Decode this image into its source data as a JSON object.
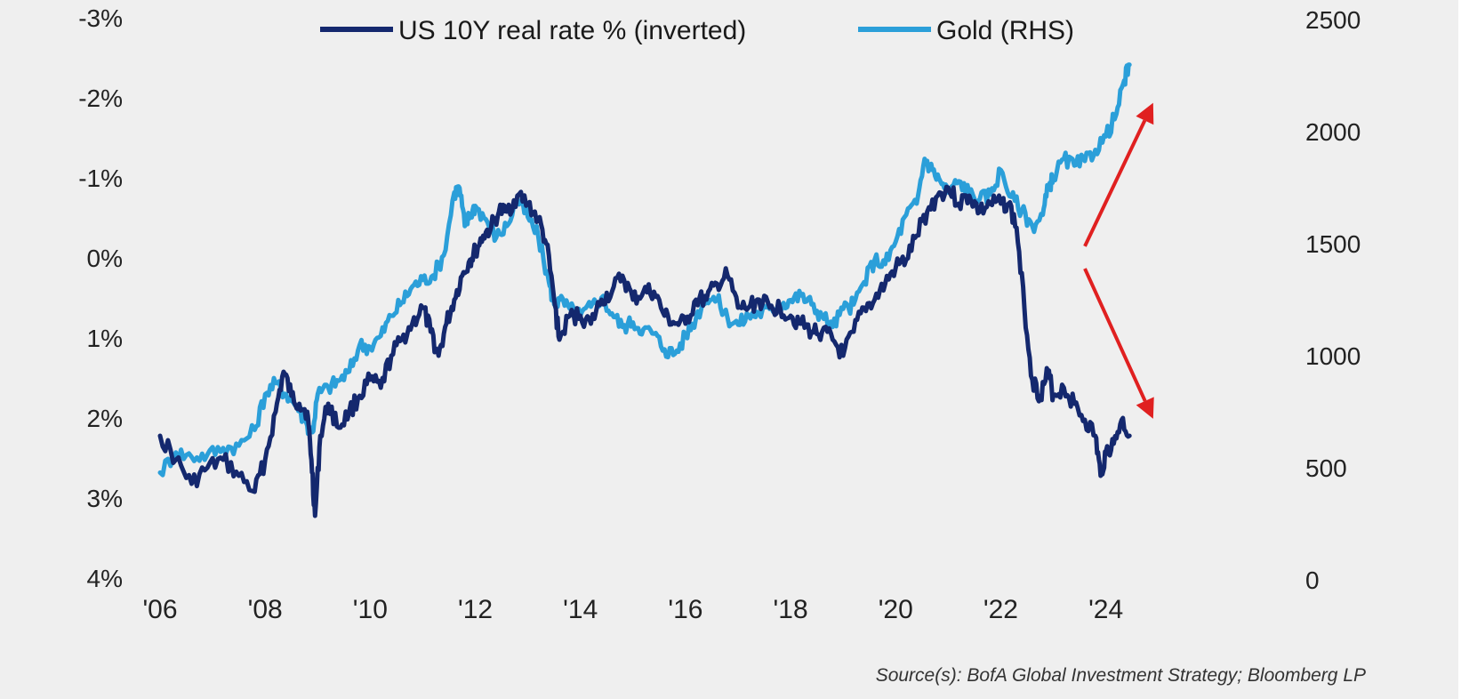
{
  "chart_data": {
    "type": "line",
    "title": "",
    "legend_position": "top-center",
    "grid": false,
    "source": "Source(s): BofA Global Investment Strategy; Bloomberg LP",
    "x_ticks": [
      "'06",
      "'08",
      "'10",
      "'12",
      "'14",
      "'16",
      "'18",
      "'20",
      "'22",
      "'24"
    ],
    "xlim": [
      2006,
      2024.7
    ],
    "left_axis": {
      "ticks": [
        "-3%",
        "-2%",
        "-1%",
        "0%",
        "1%",
        "2%",
        "3%",
        "4%"
      ],
      "ylim": [
        -3,
        4
      ],
      "inverted": true
    },
    "right_axis": {
      "ticks": [
        "2500",
        "2000",
        "1500",
        "1000",
        "500",
        "0"
      ],
      "ylim": [
        0,
        2500
      ]
    },
    "series": [
      {
        "name": "US 10Y real rate % (inverted)",
        "axis": "left",
        "color": "#14286e",
        "x": [
          2006.0,
          2006.3,
          2006.6,
          2006.9,
          2007.2,
          2007.5,
          2007.8,
          2008.0,
          2008.2,
          2008.35,
          2008.5,
          2008.65,
          2008.8,
          2008.88,
          2008.95,
          2009.05,
          2009.2,
          2009.4,
          2009.6,
          2009.8,
          2010.0,
          2010.2,
          2010.4,
          2010.6,
          2010.8,
          2011.0,
          2011.15,
          2011.3,
          2011.45,
          2011.6,
          2011.75,
          2011.9,
          2012.0,
          2012.15,
          2012.3,
          2012.45,
          2012.6,
          2012.8,
          2013.0,
          2013.2,
          2013.35,
          2013.5,
          2013.6,
          2013.8,
          2014.0,
          2014.2,
          2014.4,
          2014.6,
          2014.8,
          2015.0,
          2015.2,
          2015.4,
          2015.6,
          2015.8,
          2016.0,
          2016.2,
          2016.4,
          2016.6,
          2016.8,
          2017.0,
          2017.2,
          2017.4,
          2017.6,
          2017.8,
          2018.0,
          2018.2,
          2018.4,
          2018.6,
          2018.8,
          2019.0,
          2019.2,
          2019.4,
          2019.6,
          2019.8,
          2020.0,
          2020.2,
          2020.4,
          2020.6,
          2020.8,
          2021.0,
          2021.2,
          2021.4,
          2021.6,
          2021.8,
          2022.0,
          2022.15,
          2022.3,
          2022.45,
          2022.6,
          2022.75,
          2022.9,
          2023.0,
          2023.2,
          2023.4,
          2023.6,
          2023.8,
          2023.9,
          2024.0,
          2024.15,
          2024.3,
          2024.45
        ],
        "values": [
          2.0,
          2.3,
          2.6,
          2.4,
          2.3,
          2.5,
          2.7,
          2.3,
          1.7,
          1.2,
          1.5,
          1.6,
          1.7,
          2.3,
          3.0,
          2.0,
          1.6,
          1.9,
          1.7,
          1.5,
          1.3,
          1.4,
          1.0,
          0.8,
          0.6,
          0.4,
          0.7,
          1.0,
          0.6,
          0.3,
          0.0,
          -0.2,
          -0.3,
          -0.5,
          -0.6,
          -0.8,
          -0.8,
          -1.0,
          -0.9,
          -0.7,
          -0.4,
          0.3,
          0.8,
          0.5,
          0.5,
          0.6,
          0.3,
          0.2,
          0.0,
          0.3,
          0.2,
          0.2,
          0.5,
          0.6,
          0.6,
          0.3,
          0.3,
          0.1,
          0.0,
          0.4,
          0.4,
          0.3,
          0.4,
          0.4,
          0.5,
          0.6,
          0.7,
          0.7,
          0.8,
          1.0,
          0.7,
          0.4,
          0.3,
          0.1,
          -0.1,
          -0.2,
          -0.5,
          -0.8,
          -1.0,
          -1.1,
          -0.9,
          -1.0,
          -0.8,
          -0.9,
          -0.9,
          -0.9,
          -0.6,
          0.4,
          1.3,
          1.5,
          1.2,
          1.5,
          1.4,
          1.6,
          1.8,
          2.0,
          2.5,
          2.2,
          2.1,
          1.8,
          2.0
        ]
      },
      {
        "name": "Gold (RHS)",
        "axis": "right",
        "color": "#2b9fd9",
        "x": [
          2006.0,
          2006.3,
          2006.6,
          2006.9,
          2007.2,
          2007.5,
          2007.8,
          2008.0,
          2008.2,
          2008.4,
          2008.6,
          2008.8,
          2008.9,
          2009.0,
          2009.2,
          2009.4,
          2009.6,
          2009.8,
          2010.0,
          2010.2,
          2010.4,
          2010.6,
          2010.8,
          2011.0,
          2011.2,
          2011.4,
          2011.6,
          2011.7,
          2011.8,
          2011.9,
          2012.0,
          2012.2,
          2012.4,
          2012.6,
          2012.8,
          2013.0,
          2013.2,
          2013.4,
          2013.5,
          2013.6,
          2013.8,
          2014.0,
          2014.2,
          2014.4,
          2014.6,
          2014.8,
          2015.0,
          2015.2,
          2015.4,
          2015.6,
          2015.8,
          2016.0,
          2016.2,
          2016.4,
          2016.6,
          2016.8,
          2017.0,
          2017.2,
          2017.4,
          2017.6,
          2017.8,
          2018.0,
          2018.2,
          2018.4,
          2018.6,
          2018.8,
          2019.0,
          2019.2,
          2019.4,
          2019.6,
          2019.8,
          2020.0,
          2020.2,
          2020.4,
          2020.55,
          2020.7,
          2020.85,
          2021.0,
          2021.2,
          2021.4,
          2021.6,
          2021.8,
          2022.0,
          2022.2,
          2022.4,
          2022.6,
          2022.8,
          2022.9,
          2023.0,
          2023.2,
          2023.4,
          2023.6,
          2023.8,
          2024.0,
          2024.2,
          2024.35,
          2024.45
        ],
        "values": [
          550,
          640,
          620,
          630,
          660,
          670,
          740,
          900,
          950,
          900,
          850,
          760,
          730,
          900,
          930,
          960,
          1000,
          1120,
          1110,
          1160,
          1250,
          1310,
          1380,
          1410,
          1430,
          1520,
          1800,
          1820,
          1650,
          1700,
          1740,
          1680,
          1600,
          1650,
          1770,
          1690,
          1600,
          1400,
          1300,
          1320,
          1280,
          1250,
          1290,
          1330,
          1260,
          1200,
          1220,
          1190,
          1170,
          1100,
          1080,
          1160,
          1240,
          1340,
          1320,
          1240,
          1210,
          1250,
          1260,
          1280,
          1300,
          1320,
          1340,
          1300,
          1250,
          1200,
          1280,
          1300,
          1400,
          1500,
          1480,
          1580,
          1700,
          1750,
          1950,
          1900,
          1850,
          1800,
          1850,
          1800,
          1770,
          1790,
          1900,
          1780,
          1720,
          1650,
          1700,
          1820,
          1870,
          1950,
          1920,
          1940,
          1990,
          2050,
          2150,
          2300,
          2370
        ]
      }
    ],
    "annotations": [
      {
        "type": "arrow",
        "color": "#e02020",
        "direction": "up",
        "from": [
          2023.6,
          1560
        ],
        "to": [
          2024.9,
          2200
        ]
      },
      {
        "type": "arrow",
        "color": "#e02020",
        "direction": "down",
        "from": [
          2023.6,
          1460
        ],
        "to": [
          2024.9,
          790
        ]
      }
    ]
  }
}
